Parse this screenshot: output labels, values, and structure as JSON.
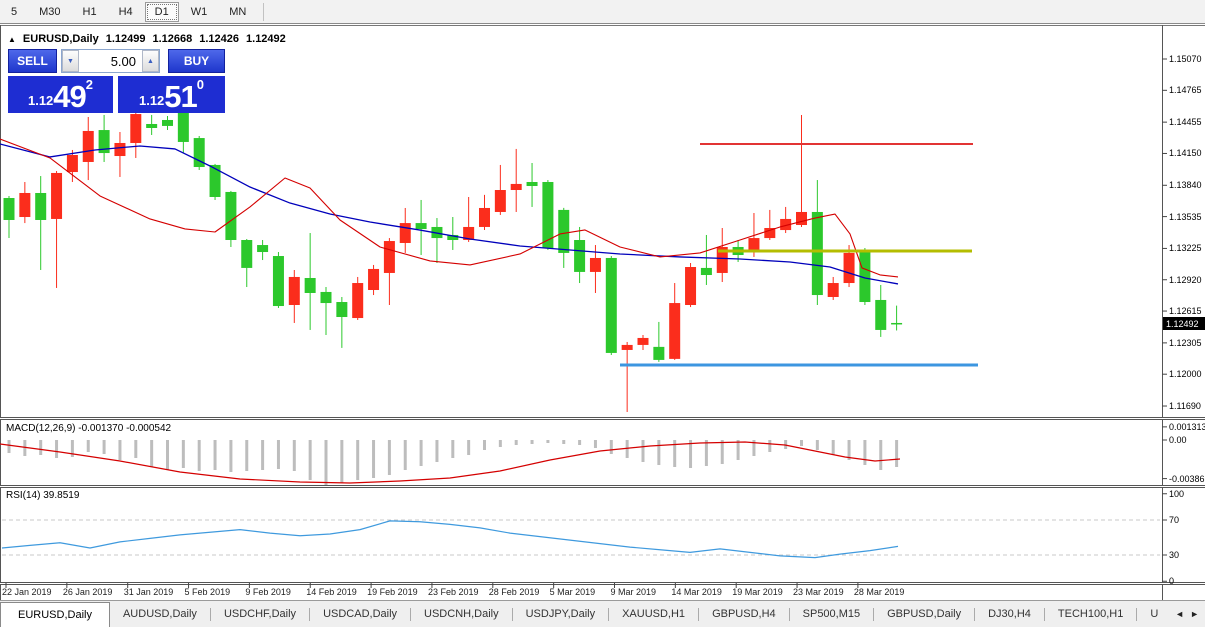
{
  "toolbar": {
    "timeframes": [
      "5",
      "M30",
      "H1",
      "H4",
      "D1",
      "W1",
      "MN"
    ],
    "active": "D1"
  },
  "header": {
    "collapse_icon": "▲",
    "symbol": "EURUSD,Daily",
    "open": "1.12499",
    "high": "1.12668",
    "low": "1.12426",
    "close": "1.12492"
  },
  "trade_panel": {
    "sell_label": "SELL",
    "buy_label": "BUY",
    "volume": "5.00",
    "spinner_down_icon": "▼",
    "spinner_up_icon": "▲",
    "bid": {
      "prefix": "1.12",
      "big": "49",
      "sup": "2"
    },
    "ask": {
      "prefix": "1.12",
      "big": "51",
      "sup": "0"
    }
  },
  "indicators": {
    "macd_label": "MACD(12,26,9) -0.001370 -0.000542",
    "rsi_label": "RSI(14) 39.8519"
  },
  "price_axis": {
    "labels": [
      "1.15070",
      "1.14765",
      "1.14455",
      "1.14150",
      "1.13840",
      "1.13535",
      "1.13225",
      "1.12920",
      "1.12615",
      "1.12305",
      "1.12000",
      "1.11690"
    ],
    "current": "1.12492"
  },
  "macd_axis": [
    {
      "text": "0.001313",
      "v": 0.001313
    },
    {
      "text": "0.00",
      "v": 0.0
    },
    {
      "text": "-0.00386",
      "v": -0.00386
    }
  ],
  "rsi_axis": [
    {
      "text": "100",
      "v": 100
    },
    {
      "text": "70",
      "v": 70
    },
    {
      "text": "30",
      "v": 30
    },
    {
      "text": "0",
      "v": 0
    }
  ],
  "date_axis": [
    "22 Jan 2019",
    "26 Jan 2019",
    "31 Jan 2019",
    "5 Feb 2019",
    "9 Feb 2019",
    "14 Feb 2019",
    "19 Feb 2019",
    "23 Feb 2019",
    "28 Feb 2019",
    "5 Mar 2019",
    "9 Mar 2019",
    "14 Mar 2019",
    "19 Mar 2019",
    "23 Mar 2019",
    "28 Mar 2019"
  ],
  "tabs": {
    "items": [
      {
        "label": "EURUSD,Daily",
        "active": true
      },
      {
        "label": "AUDUSD,Daily",
        "active": false
      },
      {
        "label": "USDCHF,Daily",
        "active": false
      },
      {
        "label": "USDCAD,Daily",
        "active": false
      },
      {
        "label": "USDCNH,Daily",
        "active": false
      },
      {
        "label": "USDJPY,Daily",
        "active": false
      },
      {
        "label": "XAUUSD,H1",
        "active": false
      },
      {
        "label": "GBPUSD,H4",
        "active": false
      },
      {
        "label": "SP500,M15",
        "active": false
      },
      {
        "label": "GBPUSD,Daily",
        "active": false
      },
      {
        "label": "DJ30,H4",
        "active": false
      },
      {
        "label": "TECH100,H1",
        "active": false
      },
      {
        "label": "U",
        "active": false
      }
    ],
    "left_arrow": "◄",
    "right_arrow": "►"
  },
  "chart_data": {
    "type": "candlestick",
    "symbol": "EURUSD",
    "timeframe": "Daily",
    "up_color": "#fb2d1c",
    "down_color": "#2cc82c",
    "ma_blue_color": "#0000bb",
    "ma_red_color": "#d40000",
    "macd_hist_color": "#bdbdbd",
    "macd_signal_color": "#d40000",
    "rsi_color": "#3f9ade",
    "rsi_level_color": "#c8c8c8",
    "ylim": [
      1.1169,
      1.1507
    ],
    "candles": [
      [
        1.13716,
        1.13736,
        1.13326,
        1.13502
      ],
      [
        1.13531,
        1.13872,
        1.13472,
        1.13765
      ],
      [
        1.13765,
        1.1393,
        1.13015,
        1.13502
      ],
      [
        1.13512,
        1.13979,
        1.1284,
        1.1396
      ],
      [
        1.13969,
        1.14184,
        1.13872,
        1.14135
      ],
      [
        1.14067,
        1.14505,
        1.13891,
        1.14369
      ],
      [
        1.14378,
        1.14525,
        1.14067,
        1.14154
      ],
      [
        1.14125,
        1.14359,
        1.13921,
        1.14252
      ],
      [
        1.14252,
        1.14573,
        1.14106,
        1.14534
      ],
      [
        1.14437,
        1.14525,
        1.1433,
        1.14398
      ],
      [
        1.14476,
        1.14515,
        1.14378,
        1.14418
      ],
      [
        1.14544,
        1.14554,
        1.14154,
        1.14262
      ],
      [
        1.143,
        1.1432,
        1.13989,
        1.14018
      ],
      [
        1.14038,
        1.14048,
        1.13697,
        1.13726
      ],
      [
        1.13775,
        1.13785,
        1.13239,
        1.13307
      ],
      [
        1.13307,
        1.13317,
        1.12849,
        1.13035
      ],
      [
        1.13258,
        1.13307,
        1.13112,
        1.1319
      ],
      [
        1.13151,
        1.1319,
        1.12645,
        1.12664
      ],
      [
        1.12674,
        1.13015,
        1.12499,
        1.12947
      ],
      [
        1.12937,
        1.13375,
        1.12431,
        1.12791
      ],
      [
        1.12801,
        1.12849,
        1.12382,
        1.12693
      ],
      [
        1.12703,
        1.12752,
        1.12256,
        1.12557
      ],
      [
        1.12547,
        1.12947,
        1.12528,
        1.12888
      ],
      [
        1.1282,
        1.13064,
        1.12771,
        1.13025
      ],
      [
        1.12986,
        1.13326,
        1.12674,
        1.13297
      ],
      [
        1.13278,
        1.13619,
        1.13181,
        1.13472
      ],
      [
        1.13472,
        1.13697,
        1.13161,
        1.13414
      ],
      [
        1.13434,
        1.13521,
        1.13083,
        1.13326
      ],
      [
        1.13356,
        1.13531,
        1.1321,
        1.13307
      ],
      [
        1.13307,
        1.13726,
        1.13288,
        1.13434
      ],
      [
        1.13434,
        1.13746,
        1.13404,
        1.13619
      ],
      [
        1.1358,
        1.14038,
        1.13551,
        1.13794
      ],
      [
        1.13794,
        1.14194,
        1.1358,
        1.13853
      ],
      [
        1.13872,
        1.14057,
        1.13629,
        1.13833
      ],
      [
        1.13872,
        1.13891,
        1.1321,
        1.13229
      ],
      [
        1.136,
        1.1362,
        1.13035,
        1.13181
      ],
      [
        1.13307,
        1.13434,
        1.12888,
        1.12996
      ],
      [
        1.12996,
        1.13258,
        1.12791,
        1.13132
      ],
      [
        1.13132,
        1.13151,
        1.12187,
        1.12207
      ],
      [
        1.12236,
        1.12314,
        1.11632,
        1.12285
      ],
      [
        1.12285,
        1.12382,
        1.12236,
        1.12353
      ],
      [
        1.12266,
        1.12509,
        1.1212,
        1.12139
      ],
      [
        1.12149,
        1.12888,
        1.12139,
        1.12693
      ],
      [
        1.12674,
        1.13083,
        1.12654,
        1.13044
      ],
      [
        1.13035,
        1.13356,
        1.12869,
        1.12966
      ],
      [
        1.12986,
        1.13424,
        1.12898,
        1.13239
      ],
      [
        1.13239,
        1.13307,
        1.13093,
        1.13161
      ],
      [
        1.1319,
        1.1357,
        1.13142,
        1.13326
      ],
      [
        1.13326,
        1.136,
        1.13307,
        1.13424
      ],
      [
        1.13404,
        1.13629,
        1.13375,
        1.13512
      ],
      [
        1.13453,
        1.14525,
        1.13434,
        1.1358
      ],
      [
        1.1358,
        1.13891,
        1.12674,
        1.12771
      ],
      [
        1.12752,
        1.12947,
        1.12723,
        1.12888
      ],
      [
        1.12888,
        1.13258,
        1.12849,
        1.13181
      ],
      [
        1.1319,
        1.13229,
        1.12674,
        1.12703
      ],
      [
        1.12723,
        1.12869,
        1.12363,
        1.12431
      ],
      [
        1.12499,
        1.12668,
        1.12426,
        1.12492
      ]
    ],
    "ma_blue": [
      [
        0,
        1.14242
      ],
      [
        50,
        1.14116
      ],
      [
        95,
        1.14184
      ],
      [
        140,
        1.14223
      ],
      [
        175,
        1.14194
      ],
      [
        210,
        1.14028
      ],
      [
        250,
        1.13823
      ],
      [
        290,
        1.13667
      ],
      [
        330,
        1.1356
      ],
      [
        370,
        1.13482
      ],
      [
        420,
        1.13404
      ],
      [
        470,
        1.13317
      ],
      [
        520,
        1.13249
      ],
      [
        570,
        1.1321
      ],
      [
        620,
        1.13171
      ],
      [
        680,
        1.13142
      ],
      [
        740,
        1.13122
      ],
      [
        790,
        1.13093
      ],
      [
        830,
        1.13044
      ],
      [
        865,
        1.12937
      ],
      [
        898,
        1.12879
      ]
    ],
    "ma_red": [
      [
        0,
        1.14291
      ],
      [
        50,
        1.14106
      ],
      [
        100,
        1.13736
      ],
      [
        150,
        1.13512
      ],
      [
        185,
        1.13415
      ],
      [
        215,
        1.13385
      ],
      [
        250,
        1.13629
      ],
      [
        285,
        1.13911
      ],
      [
        310,
        1.13814
      ],
      [
        340,
        1.13502
      ],
      [
        380,
        1.13239
      ],
      [
        430,
        1.13103
      ],
      [
        470,
        1.13064
      ],
      [
        520,
        1.13171
      ],
      [
        560,
        1.13366
      ],
      [
        585,
        1.13405
      ],
      [
        620,
        1.13239
      ],
      [
        660,
        1.13142
      ],
      [
        700,
        1.13181
      ],
      [
        740,
        1.13307
      ],
      [
        780,
        1.13434
      ],
      [
        815,
        1.13521
      ],
      [
        835,
        1.1356
      ],
      [
        850,
        1.13366
      ],
      [
        862,
        1.13035
      ],
      [
        880,
        1.12967
      ],
      [
        898,
        1.12947
      ]
    ],
    "hlines": [
      {
        "name": "resistance-line",
        "price": 1.14242,
        "color": "#e23434",
        "w": 2,
        "x1": 700,
        "x2": 973
      },
      {
        "name": "pivot-line",
        "price": 1.132,
        "color": "#b4bd00",
        "w": 3,
        "x1": 718,
        "x2": 972
      },
      {
        "name": "support-line",
        "price": 1.1209,
        "color": "#3c96e0",
        "w": 3,
        "x1": 620,
        "x2": 978
      }
    ],
    "macd": {
      "hist": [
        -0.0013,
        -0.0016,
        -0.0015,
        -0.0018,
        -0.0017,
        -0.0012,
        -0.0014,
        -0.002,
        -0.0018,
        -0.0027,
        -0.003,
        -0.0028,
        -0.0031,
        -0.003,
        -0.0032,
        -0.0031,
        -0.003,
        -0.0029,
        -0.0031,
        -0.004,
        -0.0045,
        -0.0043,
        -0.004,
        -0.0038,
        -0.0035,
        -0.003,
        -0.0026,
        -0.0022,
        -0.0018,
        -0.0015,
        -0.001,
        -0.0007,
        -0.0005,
        -0.0004,
        -0.0003,
        -0.0004,
        -0.0005,
        -0.0008,
        -0.0014,
        -0.0018,
        -0.0022,
        -0.0025,
        -0.0027,
        -0.0028,
        -0.0026,
        -0.0024,
        -0.002,
        -0.0016,
        -0.0012,
        -0.0009,
        -0.0006,
        -0.001,
        -0.0015,
        -0.002,
        -0.0025,
        -0.003,
        -0.0027
      ],
      "signal": [
        [
          0,
          -0.0004
        ],
        [
          60,
          -0.0012
        ],
        [
          120,
          -0.0021
        ],
        [
          180,
          -0.0032
        ],
        [
          240,
          -0.0039
        ],
        [
          300,
          -0.0042
        ],
        [
          350,
          -0.0043
        ],
        [
          400,
          -0.0041
        ],
        [
          450,
          -0.0038
        ],
        [
          500,
          -0.0031
        ],
        [
          550,
          -0.002
        ],
        [
          600,
          -0.0011
        ],
        [
          650,
          -0.0006
        ],
        [
          700,
          -0.0003
        ],
        [
          745,
          -0.0002
        ],
        [
          785,
          -0.0005
        ],
        [
          815,
          -0.0011
        ],
        [
          845,
          -0.0017
        ],
        [
          875,
          -0.0021
        ],
        [
          900,
          -0.0019
        ]
      ],
      "main_value": -0.00137,
      "signal_value": -0.000542
    },
    "rsi": {
      "levels": [
        70,
        30
      ],
      "current": 39.8519,
      "line": [
        [
          2,
          38
        ],
        [
          30,
          41
        ],
        [
          60,
          44
        ],
        [
          90,
          38
        ],
        [
          120,
          45
        ],
        [
          150,
          49
        ],
        [
          180,
          53
        ],
        [
          210,
          56
        ],
        [
          240,
          59
        ],
        [
          270,
          55
        ],
        [
          300,
          52
        ],
        [
          330,
          54
        ],
        [
          360,
          59
        ],
        [
          390,
          69
        ],
        [
          420,
          68
        ],
        [
          450,
          65
        ],
        [
          480,
          61
        ],
        [
          510,
          55
        ],
        [
          540,
          51
        ],
        [
          570,
          47
        ],
        [
          600,
          43
        ],
        [
          630,
          39
        ],
        [
          660,
          36
        ],
        [
          690,
          33
        ],
        [
          720,
          37
        ],
        [
          750,
          33
        ],
        [
          780,
          29
        ],
        [
          815,
          27
        ],
        [
          840,
          31
        ],
        [
          870,
          35
        ],
        [
          898,
          39.85
        ]
      ]
    }
  }
}
